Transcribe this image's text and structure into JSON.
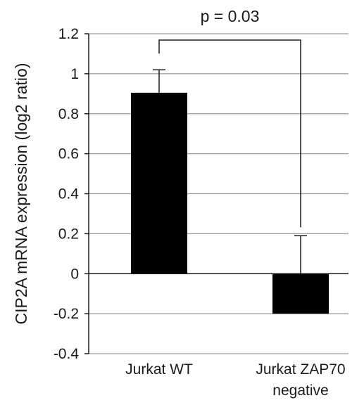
{
  "chart_data": {
    "type": "bar",
    "categories": [
      [
        "Jurkat WT"
      ],
      [
        "Jurkat ZAP70",
        "negative"
      ]
    ],
    "values": [
      0.905,
      -0.2
    ],
    "error_upper": [
      1.02,
      0.19
    ],
    "ylabel": "CIP2A mRNA expression (log2 ratio)",
    "ylim": [
      -0.4,
      1.2
    ],
    "yticks": [
      -0.4,
      -0.2,
      0,
      0.2,
      0.4,
      0.6,
      0.8,
      1,
      1.2
    ],
    "ytick_labels": [
      "-0.4",
      "-0.2",
      "0",
      "0.2",
      "0.4",
      "0.6",
      "0.8",
      "1",
      "1.2"
    ],
    "grid": true,
    "bar_color": "#000000",
    "grid_color": "#9a9a9a",
    "annotation": "p = 0.03"
  }
}
